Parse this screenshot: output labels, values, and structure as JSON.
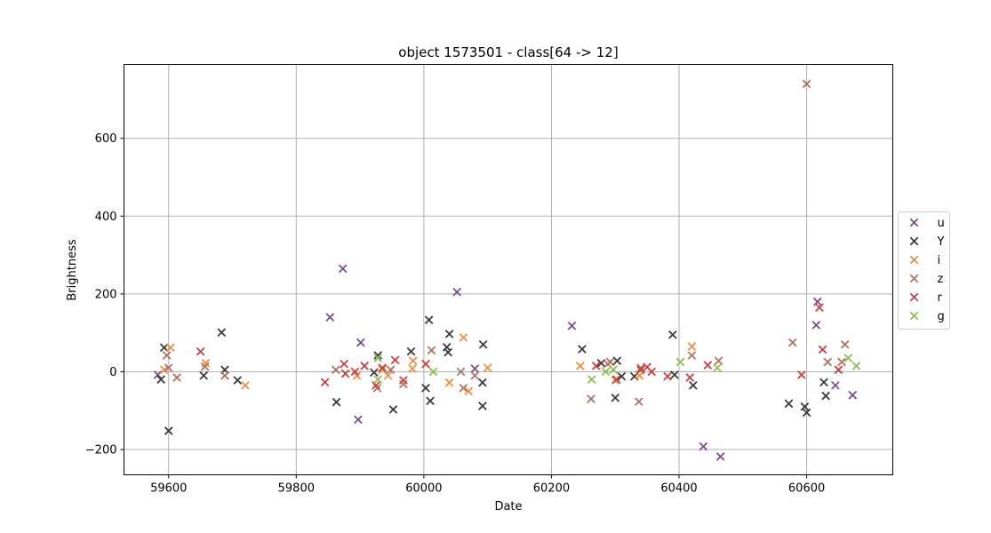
{
  "chart_data": {
    "type": "scatter",
    "title": "object 1573501 - class[64 -> 12]",
    "xlabel": "Date",
    "ylabel": "Brightness",
    "xlim": [
      59530,
      60735
    ],
    "ylim": [
      -265,
      790
    ],
    "xticks": [
      59600,
      59800,
      60000,
      60200,
      60400,
      60600
    ],
    "yticks": [
      -200,
      0,
      200,
      400,
      600
    ],
    "xtick_labels": [
      "59600",
      "59800",
      "60000",
      "60200",
      "60400",
      "60600"
    ],
    "ytick_labels": [
      "−200",
      "0",
      "200",
      "400",
      "600"
    ],
    "grid": true,
    "marker": "x",
    "legend_position": "outside-right",
    "series": [
      {
        "name": "u",
        "color": "#7b4f8e",
        "points": [
          [
            59583,
            -8
          ],
          [
            59853,
            140
          ],
          [
            59873,
            265
          ],
          [
            59897,
            -123
          ],
          [
            59901,
            75
          ],
          [
            60052,
            205
          ],
          [
            60080,
            8
          ],
          [
            60232,
            118
          ],
          [
            60438,
            -192
          ],
          [
            60465,
            -218
          ],
          [
            60615,
            120
          ],
          [
            60617,
            180
          ],
          [
            60645,
            -35
          ],
          [
            60672,
            -60
          ]
        ]
      },
      {
        "name": "Y",
        "color": "#3b3b3b",
        "points": [
          [
            59588,
            -20
          ],
          [
            59593,
            62
          ],
          [
            59600,
            -152
          ],
          [
            59655,
            -10
          ],
          [
            59683,
            101
          ],
          [
            59688,
            5
          ],
          [
            59708,
            -22
          ],
          [
            59863,
            -78
          ],
          [
            59922,
            -2
          ],
          [
            59928,
            42
          ],
          [
            59952,
            -97
          ],
          [
            59980,
            52
          ],
          [
            60003,
            -42
          ],
          [
            60008,
            133
          ],
          [
            60010,
            -75
          ],
          [
            60036,
            63
          ],
          [
            60038,
            50
          ],
          [
            60040,
            97
          ],
          [
            60093,
            70
          ],
          [
            60092,
            -28
          ],
          [
            60092,
            -88
          ],
          [
            60248,
            58
          ],
          [
            60278,
            22
          ],
          [
            60300,
            -67
          ],
          [
            60303,
            28
          ],
          [
            60310,
            -12
          ],
          [
            60330,
            -12
          ],
          [
            60390,
            95
          ],
          [
            60393,
            -8
          ],
          [
            60422,
            -35
          ],
          [
            60572,
            -82
          ],
          [
            60597,
            -90
          ],
          [
            60600,
            -105
          ],
          [
            60627,
            -27
          ],
          [
            60630,
            -62
          ]
        ]
      },
      {
        "name": "i",
        "color": "#f28e42",
        "points": [
          [
            59593,
            5
          ],
          [
            59603,
            62
          ],
          [
            59658,
            22
          ],
          [
            59720,
            -35
          ],
          [
            59895,
            -10
          ],
          [
            59935,
            5
          ],
          [
            59944,
            -10
          ],
          [
            59982,
            8
          ],
          [
            59983,
            28
          ],
          [
            60040,
            -28
          ],
          [
            60062,
            88
          ],
          [
            60070,
            -50
          ],
          [
            60100,
            10
          ],
          [
            60245,
            15
          ],
          [
            60300,
            -22
          ],
          [
            60338,
            -10
          ],
          [
            60420,
            65
          ]
        ]
      },
      {
        "name": "z",
        "color": "#b07363",
        "points": [
          [
            59597,
            42
          ],
          [
            59600,
            10
          ],
          [
            59613,
            -15
          ],
          [
            59657,
            13
          ],
          [
            59688,
            -10
          ],
          [
            59862,
            5
          ],
          [
            59927,
            -42
          ],
          [
            59948,
            5
          ],
          [
            59968,
            -32
          ],
          [
            60012,
            55
          ],
          [
            60058,
            0
          ],
          [
            60062,
            -42
          ],
          [
            60080,
            -10
          ],
          [
            60262,
            -70
          ],
          [
            60288,
            20
          ],
          [
            60292,
            25
          ],
          [
            60337,
            -77
          ],
          [
            60340,
            10
          ],
          [
            60420,
            42
          ],
          [
            60462,
            28
          ],
          [
            60578,
            75
          ],
          [
            60600,
            740
          ],
          [
            60633,
            25
          ],
          [
            60655,
            25
          ],
          [
            60660,
            70
          ]
        ]
      },
      {
        "name": "r",
        "color": "#c84141",
        "points": [
          [
            59650,
            52
          ],
          [
            59845,
            -27
          ],
          [
            59875,
            20
          ],
          [
            59877,
            -5
          ],
          [
            59892,
            0
          ],
          [
            59907,
            15
          ],
          [
            59925,
            -35
          ],
          [
            59935,
            10
          ],
          [
            59955,
            30
          ],
          [
            59968,
            -22
          ],
          [
            60003,
            20
          ],
          [
            60270,
            15
          ],
          [
            60302,
            -20
          ],
          [
            60340,
            5
          ],
          [
            60350,
            12
          ],
          [
            60357,
            0
          ],
          [
            60382,
            -12
          ],
          [
            60417,
            -15
          ],
          [
            60445,
            17
          ],
          [
            60592,
            -8
          ],
          [
            60620,
            165
          ],
          [
            60625,
            57
          ],
          [
            60650,
            5
          ]
        ]
      },
      {
        "name": "g",
        "color": "#8fbc55",
        "points": [
          [
            59928,
            35
          ],
          [
            59928,
            -20
          ],
          [
            60015,
            0
          ],
          [
            60263,
            -20
          ],
          [
            60285,
            0
          ],
          [
            60297,
            5
          ],
          [
            60402,
            25
          ],
          [
            60460,
            10
          ],
          [
            60665,
            35
          ],
          [
            60678,
            15
          ]
        ]
      }
    ]
  }
}
